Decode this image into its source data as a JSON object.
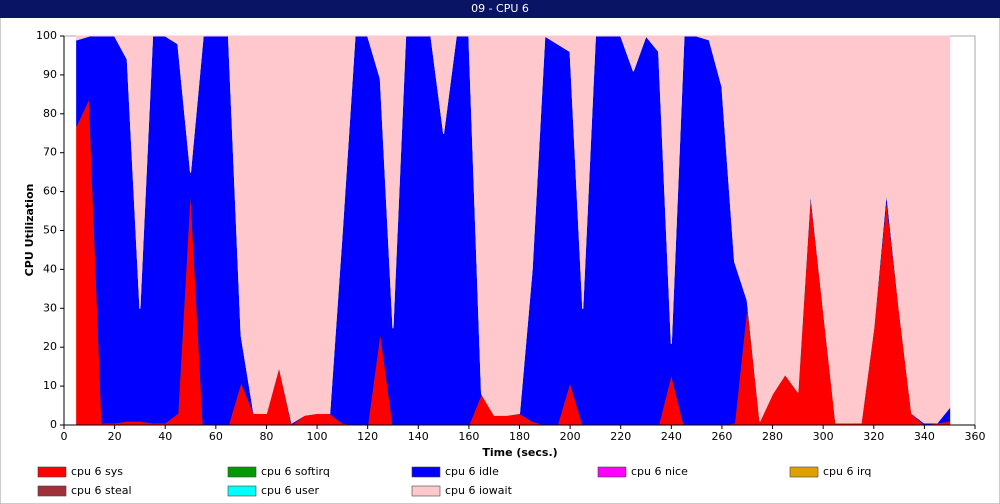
{
  "chart_data": {
    "type": "stacked-area",
    "title": "09 - CPU 6",
    "x_label": "Time (secs.)",
    "y_label": "CPU Utilization",
    "x": [
      5,
      10,
      15,
      20,
      25,
      30,
      35,
      40,
      45,
      50,
      55,
      60,
      65,
      70,
      75,
      80,
      85,
      90,
      95,
      100,
      105,
      110,
      115,
      120,
      125,
      130,
      135,
      140,
      145,
      150,
      155,
      160,
      165,
      170,
      175,
      180,
      185,
      190,
      195,
      200,
      205,
      210,
      215,
      220,
      225,
      230,
      235,
      240,
      245,
      250,
      255,
      260,
      265,
      270,
      275,
      280,
      285,
      290,
      295,
      300,
      305,
      310,
      315,
      320,
      325,
      330,
      335,
      340,
      345,
      350
    ],
    "xlim": [
      0,
      360
    ],
    "xticks": [
      0,
      20,
      40,
      60,
      80,
      100,
      120,
      140,
      160,
      180,
      200,
      220,
      240,
      260,
      280,
      300,
      320,
      340,
      360
    ],
    "ylim": [
      0,
      100
    ],
    "yticks": [
      0,
      10,
      20,
      30,
      40,
      50,
      60,
      70,
      80,
      90,
      100
    ],
    "series": [
      {
        "name": "cpu 6 sys",
        "color": "#ff0000",
        "values": [
          77,
          84,
          0.5,
          0.5,
          1,
          1,
          0.5,
          0.5,
          3,
          61,
          0,
          0,
          0,
          11,
          3,
          3,
          15,
          0,
          2.5,
          3,
          3,
          0.5,
          0,
          0,
          24,
          0,
          0,
          0,
          0,
          0,
          0,
          0,
          8,
          2.5,
          2.5,
          3,
          1,
          0,
          0,
          11,
          0,
          0,
          0,
          0,
          0,
          0,
          0,
          13,
          0,
          0,
          0,
          0,
          0.5,
          31,
          1,
          8,
          13,
          8.5,
          59,
          30,
          0.5,
          0.5,
          0.5,
          25,
          58,
          30,
          3,
          0,
          0.5,
          1
        ]
      },
      {
        "name": "cpu 6 softirq",
        "color": "#009a00",
        "values": [
          0,
          0,
          0,
          0,
          0,
          0,
          0,
          0,
          0,
          0,
          0,
          0,
          0,
          0,
          0,
          0,
          0,
          0,
          0,
          0,
          0,
          0,
          0,
          0,
          0,
          0,
          0,
          0,
          0,
          0,
          0,
          0,
          0,
          0,
          0,
          0,
          0,
          0,
          0,
          0,
          0,
          0,
          0,
          0,
          0,
          0,
          0,
          0,
          0,
          0,
          0,
          0,
          0,
          0,
          0,
          0,
          0,
          0,
          0,
          0,
          0,
          0,
          0,
          0,
          0,
          0,
          0,
          0,
          0,
          0
        ]
      },
      {
        "name": "cpu 6 idle",
        "color": "#0000ff",
        "values": [
          22,
          16,
          99.5,
          99.5,
          93,
          29,
          99.5,
          99.5,
          95,
          4,
          100,
          100,
          100,
          12,
          0,
          0,
          0,
          0.5,
          0,
          0,
          0,
          49.5,
          100,
          100,
          65,
          25,
          100,
          100,
          100,
          75,
          100,
          100,
          0,
          0,
          0,
          0,
          39,
          100,
          98,
          85,
          30,
          100,
          100,
          100,
          91,
          100,
          96,
          8,
          100,
          100,
          99,
          87,
          41.5,
          1,
          0,
          0,
          0,
          0,
          1,
          0,
          0,
          0,
          0,
          0,
          2,
          0,
          0,
          0.5,
          0,
          3.5
        ]
      },
      {
        "name": "cpu 6 nice",
        "color": "#ff00ff",
        "values": [
          0,
          0,
          0,
          0,
          0,
          0,
          0,
          0,
          0,
          0,
          0,
          0,
          0,
          0,
          0,
          0,
          0,
          0,
          0,
          0,
          0,
          0,
          0,
          0,
          0,
          0,
          0,
          0,
          0,
          0,
          0,
          0,
          0,
          0,
          0,
          0,
          0,
          0,
          0,
          0,
          0,
          0,
          0,
          0,
          0,
          0,
          0,
          0,
          0,
          0,
          0,
          0,
          0,
          0,
          0,
          0,
          0,
          0,
          0,
          0,
          0,
          0,
          0,
          0,
          0,
          0,
          0,
          0,
          0,
          0
        ]
      },
      {
        "name": "cpu 6 irq",
        "color": "#e0a000",
        "values": [
          0,
          0,
          0,
          0,
          0,
          0,
          0,
          0,
          0,
          0,
          0,
          0,
          0,
          0,
          0,
          0,
          0,
          0,
          0,
          0,
          0,
          0,
          0,
          0,
          0,
          0,
          0,
          0,
          0,
          0,
          0,
          0,
          0,
          0,
          0,
          0,
          0,
          0,
          0,
          0,
          0,
          0,
          0,
          0,
          0,
          0,
          0,
          0,
          0,
          0,
          0,
          0,
          0,
          0,
          0,
          0,
          0,
          0,
          0,
          0,
          0,
          0,
          0,
          0,
          0,
          0,
          0,
          0,
          0,
          0
        ]
      },
      {
        "name": "cpu 6 steal",
        "color": "#a0303a",
        "values": [
          0,
          0,
          0,
          0,
          0,
          0,
          0,
          0,
          0,
          0,
          0,
          0,
          0,
          0,
          0,
          0,
          0,
          0,
          0,
          0,
          0,
          0,
          0,
          0,
          0,
          0,
          0,
          0,
          0,
          0,
          0,
          0,
          0,
          0,
          0,
          0,
          0,
          0,
          0,
          0,
          0,
          0,
          0,
          0,
          0,
          0,
          0,
          0,
          0,
          0,
          0,
          0,
          0,
          0,
          0,
          0,
          0,
          0,
          0,
          0,
          0,
          0,
          0,
          0,
          0,
          0,
          0,
          0,
          0,
          0
        ]
      },
      {
        "name": "cpu 6 user",
        "color": "#00ffff",
        "values": [
          0,
          0,
          0,
          0,
          0,
          0,
          0,
          0,
          0,
          0,
          0,
          0,
          0,
          0,
          0,
          0,
          0,
          0,
          0,
          0,
          0,
          0,
          0,
          0,
          0,
          0,
          0,
          0,
          0,
          0,
          0,
          0,
          0,
          0,
          0,
          0,
          0,
          0,
          0,
          0,
          0,
          0,
          0,
          0,
          0,
          0,
          0,
          0,
          0,
          0,
          0,
          0,
          0,
          0,
          0,
          0,
          0,
          0,
          0,
          0,
          0,
          0,
          0,
          0,
          0,
          0,
          0,
          0,
          0,
          0
        ]
      },
      {
        "name": "cpu 6 iowait",
        "color": "#ffc8cc",
        "values": [
          1,
          0,
          0,
          0,
          6,
          70,
          0,
          0,
          2,
          35,
          0,
          0,
          0,
          77,
          97,
          97,
          85,
          99.5,
          97.5,
          97,
          97,
          50,
          0,
          0,
          11,
          75,
          0,
          0,
          0,
          25,
          0,
          0,
          92,
          97.5,
          97.5,
          97,
          60,
          0,
          2,
          4,
          70,
          0,
          0,
          0,
          9,
          0,
          4,
          79,
          0,
          0,
          1,
          13,
          58,
          68,
          99,
          92,
          87,
          91.5,
          40,
          70,
          99.5,
          99.5,
          99.5,
          75,
          40,
          70,
          97,
          99.5,
          99.5,
          95.5
        ]
      }
    ]
  }
}
